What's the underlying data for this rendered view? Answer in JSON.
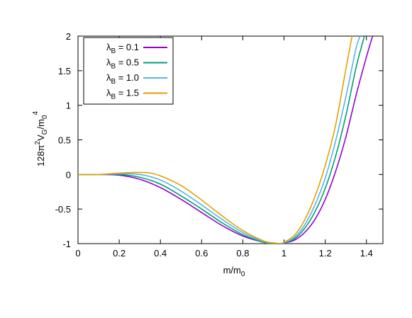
{
  "chart_data": {
    "type": "line",
    "xlabel": {
      "base": "m/m",
      "sub": "0"
    },
    "ylabel": {
      "p1": "128π",
      "sup1": "2",
      "p2": "V",
      "sub1": "G",
      "p3": "/m",
      "sub2": "0",
      "sup2": "4"
    },
    "xlim": [
      0,
      1.48
    ],
    "ylim": [
      -1,
      2
    ],
    "xticks": [
      "0",
      "0.2",
      "0.4",
      "0.6",
      "0.8",
      "1",
      "1.2",
      "1.4"
    ],
    "xtick_values": [
      0,
      0.2,
      0.4,
      0.6,
      0.8,
      1.0,
      1.2,
      1.4
    ],
    "yticks": [
      "-1",
      "-0.5",
      "0",
      "0.5",
      "1",
      "1.5",
      "2"
    ],
    "ytick_values": [
      -1,
      -0.5,
      0,
      0.5,
      1,
      1.5,
      2
    ],
    "grid": false,
    "legend_position": "top-left",
    "series": [
      {
        "name": {
          "lam": "λ",
          "sub": "B",
          "rest": " = 0.1"
        },
        "color": "#9400d3",
        "x": [
          0,
          0.1,
          0.2,
          0.3,
          0.4,
          0.5,
          0.6,
          0.7,
          0.8,
          0.9,
          0.95,
          0.98,
          1.0,
          1.05,
          1.1,
          1.15,
          1.2,
          1.25,
          1.3,
          1.35,
          1.4,
          1.43
        ],
        "y": [
          0,
          0,
          -0.01,
          -0.07,
          -0.19,
          -0.36,
          -0.55,
          -0.74,
          -0.89,
          -0.98,
          -1.0,
          -1.0,
          -0.99,
          -0.95,
          -0.84,
          -0.65,
          -0.36,
          0.04,
          0.54,
          1.15,
          1.7,
          2.0
        ]
      },
      {
        "name": {
          "lam": "λ",
          "sub": "B",
          "rest": " = 0.5"
        },
        "color": "#009e73",
        "x": [
          0,
          0.1,
          0.2,
          0.3,
          0.4,
          0.5,
          0.6,
          0.7,
          0.8,
          0.9,
          0.95,
          0.98,
          1.0,
          1.05,
          1.1,
          1.15,
          1.2,
          1.25,
          1.3,
          1.35,
          1.39
        ],
        "y": [
          0,
          0,
          0,
          -0.04,
          -0.14,
          -0.31,
          -0.5,
          -0.7,
          -0.87,
          -0.98,
          -1.0,
          -1.0,
          -0.99,
          -0.93,
          -0.78,
          -0.54,
          -0.2,
          0.26,
          0.85,
          1.55,
          2.0
        ]
      },
      {
        "name": {
          "lam": "λ",
          "sub": "B",
          "rest": " = 1.0"
        },
        "color": "#56b4e9",
        "x": [
          0,
          0.1,
          0.2,
          0.3,
          0.4,
          0.5,
          0.6,
          0.7,
          0.8,
          0.9,
          0.95,
          0.98,
          1.0,
          1.05,
          1.1,
          1.15,
          1.2,
          1.25,
          1.3,
          1.35,
          1.37
        ],
        "y": [
          0,
          0,
          0.01,
          0,
          -0.08,
          -0.24,
          -0.44,
          -0.65,
          -0.84,
          -0.97,
          -0.99,
          -1.0,
          -0.99,
          -0.91,
          -0.73,
          -0.44,
          -0.05,
          0.48,
          1.12,
          1.83,
          2.0
        ]
      },
      {
        "name": {
          "lam": "λ",
          "sub": "B",
          "rest": " = 1.5"
        },
        "color": "#e69f00",
        "x": [
          0,
          0.1,
          0.2,
          0.3,
          0.35,
          0.4,
          0.5,
          0.6,
          0.7,
          0.8,
          0.9,
          0.95,
          0.98,
          1.0,
          1.05,
          1.1,
          1.15,
          1.2,
          1.25,
          1.3,
          1.33
        ],
        "y": [
          0,
          0,
          0.02,
          0.03,
          0.02,
          -0.02,
          -0.16,
          -0.37,
          -0.6,
          -0.81,
          -0.96,
          -0.99,
          -1.0,
          -0.98,
          -0.88,
          -0.66,
          -0.32,
          0.13,
          0.71,
          1.52,
          2.0
        ]
      }
    ]
  }
}
